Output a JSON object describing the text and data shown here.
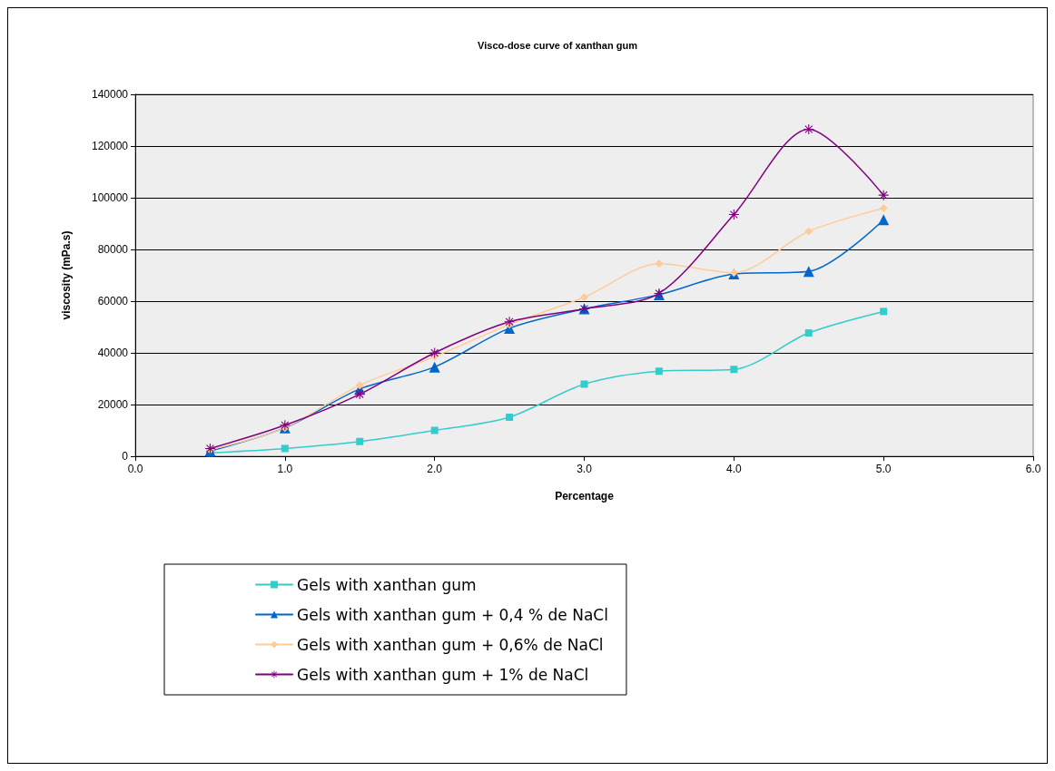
{
  "chart_data": {
    "type": "line",
    "title": "Visco-dose curve of xanthan gum",
    "xlabel": "Percentage",
    "ylabel": "viscosity (mPa.s)",
    "x": [
      0.5,
      1.0,
      1.5,
      2.0,
      2.5,
      3.0,
      3.5,
      4.0,
      4.5,
      5.0
    ],
    "series": [
      {
        "name": "Gels with xanthan gum",
        "color": "#33cccc",
        "marker": "square",
        "values": [
          1300,
          3000,
          5700,
          10000,
          15100,
          27900,
          32900,
          33600,
          47700,
          56000
        ]
      },
      {
        "name": "Gels with xanthan gum + 0,4 % de NaCl",
        "color": "#0066cc",
        "marker": "triangle",
        "values": [
          2000,
          11000,
          26000,
          34500,
          49500,
          57000,
          62500,
          70500,
          71500,
          91500
        ]
      },
      {
        "name": "Gels with xanthan gum + 0,6% de NaCl",
        "color": "#ffcc99",
        "marker": "diamond",
        "values": [
          2500,
          11000,
          27500,
          38500,
          51000,
          61500,
          74500,
          71000,
          87000,
          96000
        ]
      },
      {
        "name": "Gels with xanthan gum + 1% de NaCl",
        "color": "#800080",
        "marker": "star",
        "values": [
          3000,
          12000,
          24000,
          40000,
          52000,
          57000,
          63000,
          93500,
          126500,
          101000
        ]
      }
    ],
    "xlim": [
      0,
      6
    ],
    "xticks": [
      {
        "value": 0,
        "label": "0.0"
      },
      {
        "value": 1,
        "label": "1.0"
      },
      {
        "value": 2,
        "label": "2.0"
      },
      {
        "value": 3,
        "label": "3.0"
      },
      {
        "value": 4,
        "label": "4.0"
      },
      {
        "value": 5,
        "label": "5.0"
      },
      {
        "value": 6,
        "label": "6.0"
      }
    ],
    "ylim": [
      0,
      140000
    ],
    "yticks": [
      0,
      20000,
      40000,
      60000,
      80000,
      100000,
      120000,
      140000
    ],
    "grid": "y",
    "legend": "bottom",
    "line_style": "solid"
  }
}
